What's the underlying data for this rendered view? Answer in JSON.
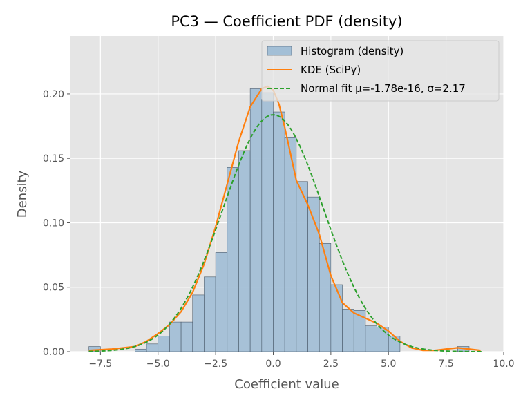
{
  "chart_data": {
    "type": "bar",
    "title": "PC3 — Coefficient PDF (density)",
    "xlabel": "Coefficient value",
    "ylabel": "Density",
    "xlim": [
      -8.8,
      10.0
    ],
    "ylim": [
      0.0,
      0.245
    ],
    "xticks": [
      -7.5,
      -5.0,
      -2.5,
      0.0,
      2.5,
      5.0,
      7.5,
      10.0
    ],
    "xtick_labels": [
      "−7.5",
      "−5.0",
      "−2.5",
      "0.0",
      "2.5",
      "5.0",
      "7.5",
      "10.0"
    ],
    "yticks": [
      0.0,
      0.05,
      0.1,
      0.15,
      0.2
    ],
    "ytick_labels": [
      "0.00",
      "0.05",
      "0.10",
      "0.15",
      "0.20"
    ],
    "grid": true,
    "legend_position": "top-right",
    "colors": {
      "histogram_fill": "#a3bfd6",
      "histogram_edge": "#4a5a6a",
      "kde": "#ff7f0e",
      "normal": "#2ca02c",
      "plot_bg": "#e5e5e5",
      "grid": "#ffffff"
    },
    "histogram": {
      "name": "Histogram (density)",
      "bin_width": 0.5,
      "bins": [
        {
          "x0": -8.0,
          "density": 0.004
        },
        {
          "x0": -7.5,
          "density": 0.0
        },
        {
          "x0": -7.0,
          "density": 0.0
        },
        {
          "x0": -6.5,
          "density": 0.0
        },
        {
          "x0": -6.0,
          "density": 0.002
        },
        {
          "x0": -5.5,
          "density": 0.006
        },
        {
          "x0": -5.0,
          "density": 0.012
        },
        {
          "x0": -4.5,
          "density": 0.023
        },
        {
          "x0": -4.0,
          "density": 0.023
        },
        {
          "x0": -3.5,
          "density": 0.044
        },
        {
          "x0": -3.0,
          "density": 0.058
        },
        {
          "x0": -2.5,
          "density": 0.077
        },
        {
          "x0": -2.0,
          "density": 0.143
        },
        {
          "x0": -1.5,
          "density": 0.156
        },
        {
          "x0": -1.0,
          "density": 0.204
        },
        {
          "x0": -0.5,
          "density": 0.201
        },
        {
          "x0": 0.0,
          "density": 0.186
        },
        {
          "x0": 0.5,
          "density": 0.166
        },
        {
          "x0": 1.0,
          "density": 0.132
        },
        {
          "x0": 1.5,
          "density": 0.12
        },
        {
          "x0": 2.0,
          "density": 0.084
        },
        {
          "x0": 2.5,
          "density": 0.052
        },
        {
          "x0": 3.0,
          "density": 0.033
        },
        {
          "x0": 3.5,
          "density": 0.032
        },
        {
          "x0": 4.0,
          "density": 0.02
        },
        {
          "x0": 4.5,
          "density": 0.019
        },
        {
          "x0": 5.0,
          "density": 0.012
        },
        {
          "x0": 5.5,
          "density": 0.0
        },
        {
          "x0": 6.0,
          "density": 0.0
        },
        {
          "x0": 6.5,
          "density": 0.0
        },
        {
          "x0": 7.0,
          "density": 0.0
        },
        {
          "x0": 7.5,
          "density": 0.0
        },
        {
          "x0": 8.0,
          "density": 0.004
        }
      ]
    },
    "series": [
      {
        "name": "KDE (SciPy)",
        "type": "line",
        "style": "solid",
        "x": [
          -8.0,
          -7.0,
          -6.0,
          -5.5,
          -5.0,
          -4.5,
          -4.0,
          -3.5,
          -3.0,
          -2.5,
          -2.0,
          -1.5,
          -1.0,
          -0.5,
          -0.25,
          0.0,
          0.25,
          0.5,
          1.0,
          1.5,
          2.0,
          2.5,
          3.0,
          3.5,
          4.0,
          4.5,
          5.0,
          5.5,
          6.0,
          6.5,
          7.0,
          7.5,
          8.0,
          8.5,
          9.0
        ],
        "y": [
          0.001,
          0.002,
          0.004,
          0.008,
          0.014,
          0.021,
          0.031,
          0.046,
          0.068,
          0.097,
          0.13,
          0.163,
          0.19,
          0.204,
          0.206,
          0.203,
          0.192,
          0.174,
          0.133,
          0.114,
          0.091,
          0.059,
          0.038,
          0.03,
          0.026,
          0.022,
          0.016,
          0.008,
          0.003,
          0.001,
          0.001,
          0.002,
          0.003,
          0.002,
          0.001
        ]
      },
      {
        "name": "Normal fit μ=-1.78e-16, σ=2.17",
        "type": "line",
        "style": "dashed",
        "mu": -1.78e-16,
        "sigma": 2.17,
        "x_range": [
          -8.0,
          9.1
        ]
      }
    ]
  }
}
